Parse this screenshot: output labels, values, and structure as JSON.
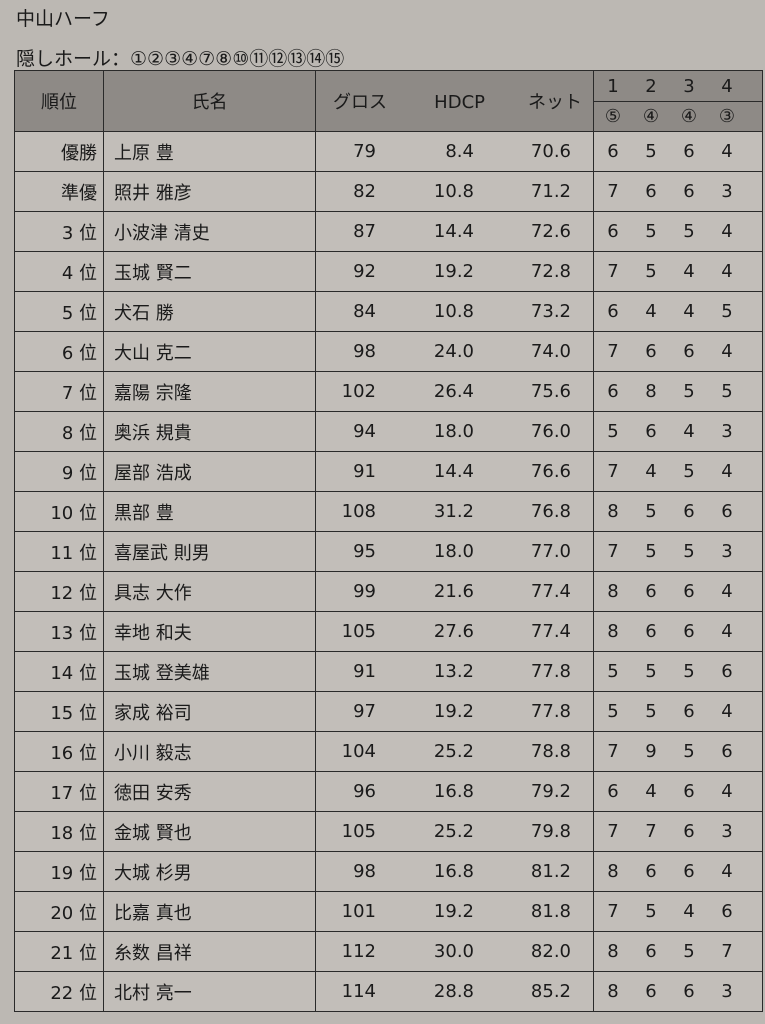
{
  "title": "中山ハーフ",
  "hidden_holes_label": "隠しホール：①②③④⑦⑧⑩⑪⑫⑬⑭⑮",
  "headers": {
    "rank": "順位",
    "name": "氏名",
    "gross": "グロス",
    "hdcp": "HDCP",
    "net": "ネット",
    "holes": [
      "1",
      "2",
      "3",
      "4"
    ],
    "pars": [
      "⑤",
      "④",
      "④",
      "③"
    ]
  },
  "rows": [
    {
      "rank": "優勝",
      "name": "上原 豊",
      "gross": "79",
      "hdcp": "8.4",
      "net": "70.6",
      "scores": [
        "6",
        "5",
        "6",
        "4"
      ]
    },
    {
      "rank": "準優",
      "name": "照井 雅彦",
      "gross": "82",
      "hdcp": "10.8",
      "net": "71.2",
      "scores": [
        "7",
        "6",
        "6",
        "3"
      ]
    },
    {
      "rank": "3 位",
      "name": "小波津 清史",
      "gross": "87",
      "hdcp": "14.4",
      "net": "72.6",
      "scores": [
        "6",
        "5",
        "5",
        "4"
      ]
    },
    {
      "rank": "4 位",
      "name": "玉城 賢二",
      "gross": "92",
      "hdcp": "19.2",
      "net": "72.8",
      "scores": [
        "7",
        "5",
        "4",
        "4"
      ]
    },
    {
      "rank": "5 位",
      "name": "犬石 勝",
      "gross": "84",
      "hdcp": "10.8",
      "net": "73.2",
      "scores": [
        "6",
        "4",
        "4",
        "5"
      ]
    },
    {
      "rank": "6 位",
      "name": "大山 克二",
      "gross": "98",
      "hdcp": "24.0",
      "net": "74.0",
      "scores": [
        "7",
        "6",
        "6",
        "4"
      ]
    },
    {
      "rank": "7 位",
      "name": "嘉陽 宗隆",
      "gross": "102",
      "hdcp": "26.4",
      "net": "75.6",
      "scores": [
        "6",
        "8",
        "5",
        "5"
      ]
    },
    {
      "rank": "8 位",
      "name": "奥浜 規貴",
      "gross": "94",
      "hdcp": "18.0",
      "net": "76.0",
      "scores": [
        "5",
        "6",
        "4",
        "3"
      ]
    },
    {
      "rank": "9 位",
      "name": "屋部 浩成",
      "gross": "91",
      "hdcp": "14.4",
      "net": "76.6",
      "scores": [
        "7",
        "4",
        "5",
        "4"
      ]
    },
    {
      "rank": "10 位",
      "name": "黒部 豊",
      "gross": "108",
      "hdcp": "31.2",
      "net": "76.8",
      "scores": [
        "8",
        "5",
        "6",
        "6"
      ]
    },
    {
      "rank": "11 位",
      "name": "喜屋武 則男",
      "gross": "95",
      "hdcp": "18.0",
      "net": "77.0",
      "scores": [
        "7",
        "5",
        "5",
        "3"
      ]
    },
    {
      "rank": "12 位",
      "name": "具志 大作",
      "gross": "99",
      "hdcp": "21.6",
      "net": "77.4",
      "scores": [
        "8",
        "6",
        "6",
        "4"
      ]
    },
    {
      "rank": "13 位",
      "name": "幸地 和夫",
      "gross": "105",
      "hdcp": "27.6",
      "net": "77.4",
      "scores": [
        "8",
        "6",
        "6",
        "4"
      ]
    },
    {
      "rank": "14 位",
      "name": "玉城 登美雄",
      "gross": "91",
      "hdcp": "13.2",
      "net": "77.8",
      "scores": [
        "5",
        "5",
        "5",
        "6"
      ]
    },
    {
      "rank": "15 位",
      "name": "家成 裕司",
      "gross": "97",
      "hdcp": "19.2",
      "net": "77.8",
      "scores": [
        "5",
        "5",
        "6",
        "4"
      ]
    },
    {
      "rank": "16 位",
      "name": "小川 毅志",
      "gross": "104",
      "hdcp": "25.2",
      "net": "78.8",
      "scores": [
        "7",
        "9",
        "5",
        "6"
      ]
    },
    {
      "rank": "17 位",
      "name": "徳田 安秀",
      "gross": "96",
      "hdcp": "16.8",
      "net": "79.2",
      "scores": [
        "6",
        "4",
        "6",
        "4"
      ]
    },
    {
      "rank": "18 位",
      "name": "金城 賢也",
      "gross": "105",
      "hdcp": "25.2",
      "net": "79.8",
      "scores": [
        "7",
        "7",
        "6",
        "3"
      ]
    },
    {
      "rank": "19 位",
      "name": "大城 杉男",
      "gross": "98",
      "hdcp": "16.8",
      "net": "81.2",
      "scores": [
        "8",
        "6",
        "6",
        "4"
      ]
    },
    {
      "rank": "20 位",
      "name": "比嘉 真也",
      "gross": "101",
      "hdcp": "19.2",
      "net": "81.8",
      "scores": [
        "7",
        "5",
        "4",
        "6"
      ]
    },
    {
      "rank": "21 位",
      "name": "糸数 昌祥",
      "gross": "112",
      "hdcp": "30.0",
      "net": "82.0",
      "scores": [
        "8",
        "6",
        "5",
        "7"
      ]
    },
    {
      "rank": "22 位",
      "name": "北村 亮一",
      "gross": "114",
      "hdcp": "28.8",
      "net": "85.2",
      "scores": [
        "8",
        "6",
        "6",
        "3"
      ]
    }
  ]
}
